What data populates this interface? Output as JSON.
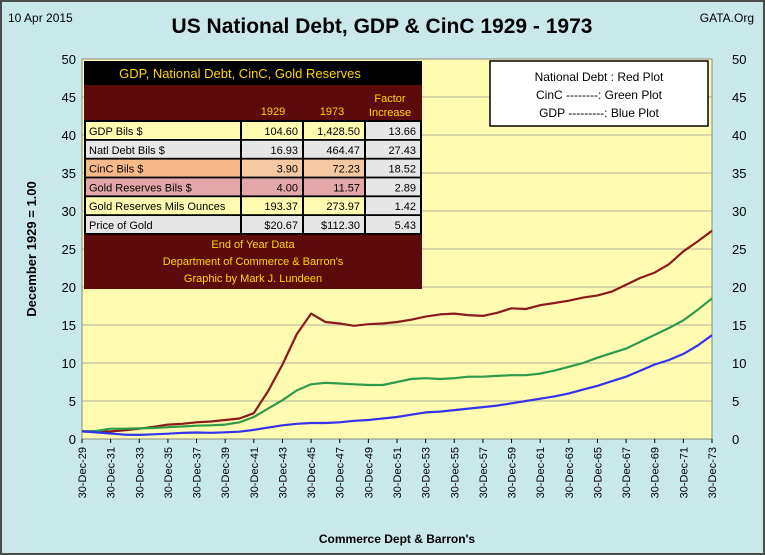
{
  "header": {
    "date": "10 Apr 2015",
    "source": "GATA.Org"
  },
  "legend": {
    "lines": [
      "National Debt : Red Plot",
      "CinC  --------: Green Plot",
      "GDP  ---------: Blue  Plot"
    ]
  },
  "table": {
    "title": "GDP, National Debt, CinC, Gold Reserves",
    "headers": [
      "",
      "1929",
      "1973",
      "Factor Increase"
    ],
    "header_factor_lines": [
      "Factor",
      "Increase"
    ],
    "rows": [
      {
        "label": "GDP Bils $",
        "v1929": "104.60",
        "v1973": "1,428.50",
        "factor": "13.66"
      },
      {
        "label": "Natl Debt Bils $",
        "v1929": "16.93",
        "v1973": "464.47",
        "factor": "27.43"
      },
      {
        "label": "CinC Bils $",
        "v1929": "3.90",
        "v1973": "72.23",
        "factor": "18.52"
      },
      {
        "label": "Gold Reserves Bils $",
        "v1929": "4.00",
        "v1973": "11.57",
        "factor": "2.89"
      },
      {
        "label": "Gold Reserves Mils Ounces",
        "v1929": "193.37",
        "v1973": "273.97",
        "factor": "1.42"
      },
      {
        "label": "Price of Gold",
        "v1929": "$20.67",
        "v1973": "$112.30",
        "factor": "5.43"
      }
    ],
    "footer_lines": [
      "End of Year Data",
      "Department of Commerce & Barron's",
      "Graphic by Mark J. Lundeen"
    ]
  },
  "colors": {
    "frame_bg": "#c8e8ea",
    "plot_bg": "#fffbb0",
    "table_header_bg": "#5c0a0a",
    "debt": "#8b1a1a",
    "cinc": "#2e9b4a",
    "gdp": "#3333ee"
  },
  "chart_data": {
    "type": "line",
    "title": "US National Debt, GDP & CinC 1929 - 1973",
    "xlabel": "Commerce Dept & Barron's",
    "ylabel": "December 1929  =  1.00",
    "ylim": [
      0,
      50
    ],
    "yticks": [
      0,
      5,
      10,
      15,
      20,
      25,
      30,
      35,
      40,
      45,
      50
    ],
    "x": [
      1929,
      1930,
      1931,
      1932,
      1933,
      1934,
      1935,
      1936,
      1937,
      1938,
      1939,
      1940,
      1941,
      1942,
      1943,
      1944,
      1945,
      1946,
      1947,
      1948,
      1949,
      1950,
      1951,
      1952,
      1953,
      1954,
      1955,
      1956,
      1957,
      1958,
      1959,
      1960,
      1961,
      1962,
      1963,
      1964,
      1965,
      1966,
      1967,
      1968,
      1969,
      1970,
      1971,
      1972,
      1973
    ],
    "x_tick_labels": [
      "30-Dec-29",
      "30-Dec-31",
      "30-Dec-33",
      "30-Dec-35",
      "30-Dec-37",
      "30-Dec-39",
      "30-Dec-41",
      "30-Dec-43",
      "30-Dec-45",
      "30-Dec-47",
      "30-Dec-49",
      "30-Dec-51",
      "30-Dec-53",
      "30-Dec-55",
      "30-Dec-57",
      "30-Dec-59",
      "30-Dec-61",
      "30-Dec-63",
      "30-Dec-65",
      "30-Dec-67",
      "30-Dec-69",
      "30-Dec-71",
      "30-Dec-73"
    ],
    "series": [
      {
        "name": "National Debt",
        "color": "#8b1a1a",
        "values": [
          1.0,
          0.95,
          1.0,
          1.15,
          1.35,
          1.6,
          1.9,
          2.0,
          2.2,
          2.3,
          2.5,
          2.7,
          3.4,
          6.3,
          9.8,
          13.8,
          16.5,
          15.4,
          15.2,
          14.9,
          15.1,
          15.2,
          15.4,
          15.7,
          16.1,
          16.4,
          16.5,
          16.3,
          16.2,
          16.6,
          17.2,
          17.1,
          17.6,
          17.9,
          18.2,
          18.6,
          18.9,
          19.4,
          20.3,
          21.2,
          21.9,
          23.0,
          24.7,
          26.0,
          27.4
        ]
      },
      {
        "name": "CinC",
        "color": "#2e9b4a",
        "values": [
          1.0,
          1.05,
          1.35,
          1.35,
          1.4,
          1.45,
          1.55,
          1.65,
          1.75,
          1.8,
          1.9,
          2.2,
          2.9,
          4.0,
          5.1,
          6.4,
          7.2,
          7.4,
          7.3,
          7.2,
          7.1,
          7.1,
          7.5,
          7.9,
          8.0,
          7.9,
          8.0,
          8.2,
          8.2,
          8.3,
          8.4,
          8.4,
          8.6,
          9.0,
          9.5,
          10.0,
          10.7,
          11.3,
          11.9,
          12.8,
          13.7,
          14.6,
          15.6,
          17.0,
          18.5
        ]
      },
      {
        "name": "GDP",
        "color": "#3333ee",
        "values": [
          1.0,
          0.87,
          0.73,
          0.56,
          0.54,
          0.62,
          0.7,
          0.8,
          0.86,
          0.82,
          0.88,
          0.96,
          1.2,
          1.5,
          1.8,
          2.0,
          2.1,
          2.1,
          2.2,
          2.4,
          2.5,
          2.7,
          2.9,
          3.2,
          3.5,
          3.6,
          3.8,
          4.0,
          4.2,
          4.4,
          4.7,
          5.0,
          5.3,
          5.6,
          6.0,
          6.5,
          7.0,
          7.6,
          8.2,
          9.0,
          9.8,
          10.4,
          11.2,
          12.3,
          13.66
        ]
      }
    ]
  }
}
